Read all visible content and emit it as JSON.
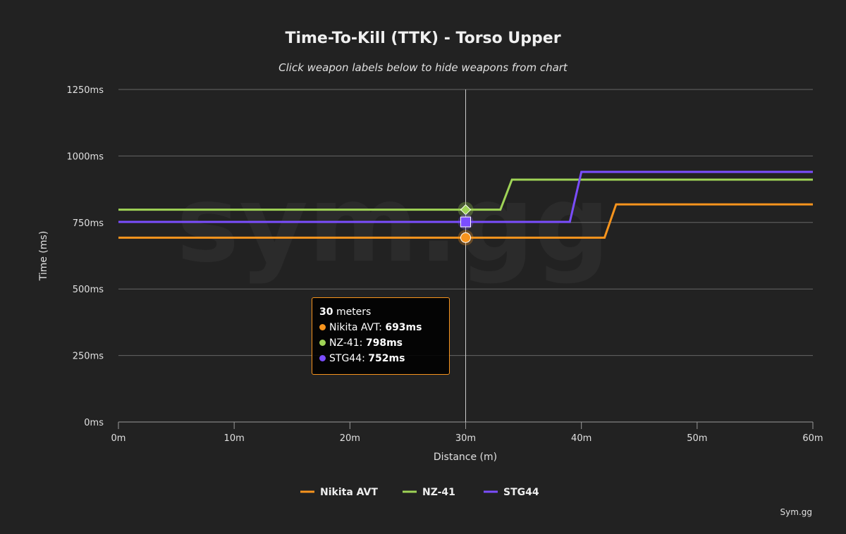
{
  "chart_data": {
    "type": "line",
    "title": "Time-To-Kill (TTK) - Torso Upper",
    "subtitle": "Click weapon labels below to hide weapons from chart",
    "xlabel": "Distance (m)",
    "ylabel": "Time (ms)",
    "xlim": [
      0,
      60
    ],
    "ylim": [
      0,
      1250
    ],
    "x_ticks": [
      "0m",
      "10m",
      "20m",
      "30m",
      "40m",
      "50m",
      "60m"
    ],
    "y_ticks": [
      "0ms",
      "250ms",
      "500ms",
      "750ms",
      "1000ms",
      "1250ms"
    ],
    "grid": true,
    "legend_position": "bottom",
    "series": [
      {
        "name": "Nikita AVT",
        "color": "#f7941d",
        "points": [
          [
            0,
            693
          ],
          [
            42,
            693
          ],
          [
            43,
            818
          ],
          [
            60,
            818
          ]
        ]
      },
      {
        "name": "NZ-41",
        "color": "#9fd356",
        "points": [
          [
            0,
            798
          ],
          [
            33,
            798
          ],
          [
            34,
            911
          ],
          [
            60,
            911
          ]
        ]
      },
      {
        "name": "STG44",
        "color": "#7b4dff",
        "points": [
          [
            0,
            752
          ],
          [
            39,
            752
          ],
          [
            40,
            940
          ],
          [
            60,
            940
          ]
        ]
      }
    ],
    "crosshair_x": 30,
    "tooltip": {
      "distance": "30",
      "unit": "meters",
      "rows": [
        {
          "label": "Nikita AVT: ",
          "value": "693ms"
        },
        {
          "label": "NZ-41: ",
          "value": "798ms"
        },
        {
          "label": "STG44: ",
          "value": "752ms"
        }
      ]
    },
    "credit": "Sym.gg",
    "watermark": "sym.gg"
  }
}
